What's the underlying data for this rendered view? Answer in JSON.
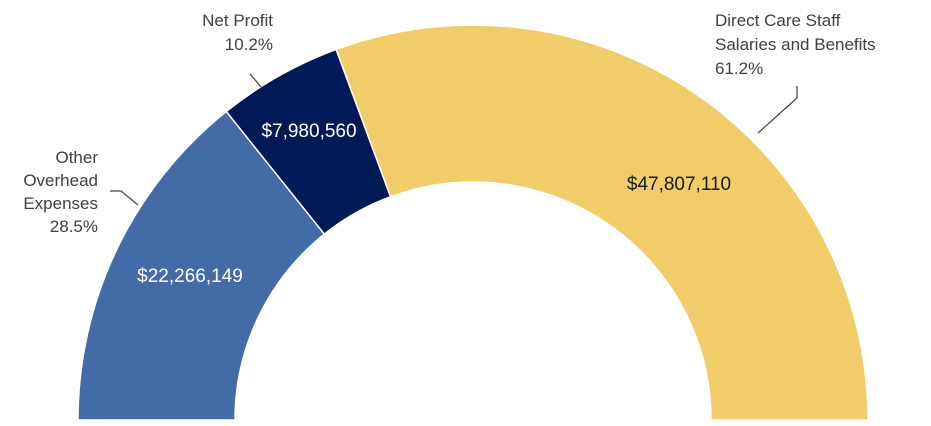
{
  "chart_data": {
    "type": "pie",
    "subtype": "half-donut",
    "title": "",
    "slices": [
      {
        "label_lines": [
          "Other",
          "Overhead",
          "Expenses"
        ],
        "percent_label": "28.5%",
        "percent": 28.5,
        "value": 22266149,
        "value_label": "$22,266,149",
        "color": "#426BA8",
        "value_color": "#ffffff"
      },
      {
        "label_lines": [
          "Net Profit"
        ],
        "percent_label": "10.2%",
        "percent": 10.2,
        "value": 7980560,
        "value_label": "$7,980,560",
        "color": "#001A57",
        "value_color": "#ffffff"
      },
      {
        "label_lines": [
          "Direct Care Staff",
          "Salaries and Benefits"
        ],
        "percent_label": "61.2%",
        "percent": 61.2,
        "value": 47807110,
        "value_label": "$47,807,110",
        "color": "#F0CD68",
        "value_color": "#1a1a1a"
      }
    ]
  }
}
